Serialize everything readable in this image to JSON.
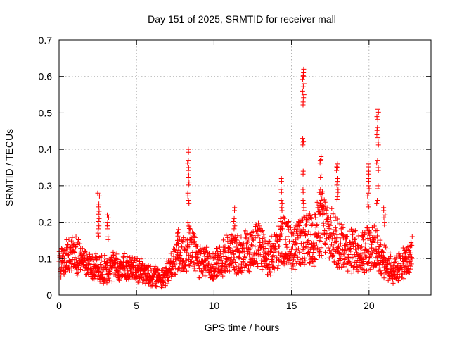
{
  "chart_data": {
    "type": "scatter",
    "title": "Day 151 of 2025, SRMTID for receiver mall",
    "xlabel": "GPS time / hours",
    "ylabel": "SRMTID / TECUs",
    "xlim": [
      0,
      24
    ],
    "ylim": [
      0,
      0.7
    ],
    "xticks": [
      0,
      5,
      10,
      15,
      20
    ],
    "xtick_labels": [
      "0",
      "5",
      "10",
      "15",
      "20"
    ],
    "yticks": [
      0,
      0.1,
      0.2,
      0.3,
      0.4,
      0.5,
      0.6,
      0.7
    ],
    "ytick_labels": [
      "0",
      "0.1",
      "0.2",
      "0.3",
      "0.4",
      "0.5",
      "0.6",
      "0.7"
    ],
    "grid": true,
    "marker": "+",
    "color": "#ff0000",
    "data_extent_hours": [
      0,
      22.8
    ],
    "baseline": [
      [
        0.0,
        0.09
      ],
      [
        0.5,
        0.1
      ],
      [
        1.0,
        0.12
      ],
      [
        1.5,
        0.09
      ],
      [
        2.0,
        0.08
      ],
      [
        2.5,
        0.07
      ],
      [
        3.0,
        0.07
      ],
      [
        3.5,
        0.08
      ],
      [
        4.0,
        0.08
      ],
      [
        4.5,
        0.07
      ],
      [
        5.0,
        0.07
      ],
      [
        5.5,
        0.06
      ],
      [
        6.0,
        0.05
      ],
      [
        6.5,
        0.05
      ],
      [
        7.0,
        0.06
      ],
      [
        7.5,
        0.1
      ],
      [
        8.0,
        0.11
      ],
      [
        8.5,
        0.13
      ],
      [
        9.0,
        0.1
      ],
      [
        9.5,
        0.09
      ],
      [
        10.0,
        0.08
      ],
      [
        10.5,
        0.1
      ],
      [
        11.0,
        0.12
      ],
      [
        11.5,
        0.11
      ],
      [
        12.0,
        0.12
      ],
      [
        12.5,
        0.13
      ],
      [
        13.0,
        0.14
      ],
      [
        13.5,
        0.1
      ],
      [
        14.0,
        0.12
      ],
      [
        14.5,
        0.15
      ],
      [
        15.0,
        0.13
      ],
      [
        15.5,
        0.14
      ],
      [
        16.0,
        0.15
      ],
      [
        16.5,
        0.16
      ],
      [
        17.0,
        0.2
      ],
      [
        17.5,
        0.16
      ],
      [
        18.0,
        0.15
      ],
      [
        18.5,
        0.13
      ],
      [
        19.0,
        0.12
      ],
      [
        19.5,
        0.12
      ],
      [
        20.0,
        0.14
      ],
      [
        20.5,
        0.12
      ],
      [
        21.0,
        0.09
      ],
      [
        21.5,
        0.07
      ],
      [
        22.0,
        0.08
      ],
      [
        22.5,
        0.09
      ],
      [
        22.8,
        0.12
      ]
    ],
    "spikes": [
      {
        "x": 2.55,
        "values": [
          0.28,
          0.25,
          0.23,
          0.21,
          0.19,
          0.17
        ]
      },
      {
        "x": 3.15,
        "values": [
          0.22,
          0.2,
          0.19,
          0.16
        ]
      },
      {
        "x": 7.65,
        "values": [
          0.18,
          0.17,
          0.15
        ]
      },
      {
        "x": 8.35,
        "values": [
          0.4,
          0.37,
          0.35,
          0.33,
          0.31,
          0.28,
          0.26,
          0.2
        ]
      },
      {
        "x": 11.3,
        "values": [
          0.24,
          0.21,
          0.19
        ]
      },
      {
        "x": 14.35,
        "values": [
          0.32,
          0.29,
          0.26,
          0.24,
          0.21
        ]
      },
      {
        "x": 15.75,
        "values": [
          0.62,
          0.61,
          0.6,
          0.58,
          0.56,
          0.55,
          0.53,
          0.43,
          0.42,
          0.34,
          0.29,
          0.26,
          0.24
        ]
      },
      {
        "x": 16.85,
        "values": [
          0.38,
          0.37,
          0.33,
          0.29,
          0.26,
          0.23
        ]
      },
      {
        "x": 17.95,
        "values": [
          0.36,
          0.35,
          0.32,
          0.31,
          0.29,
          0.27
        ]
      },
      {
        "x": 19.95,
        "values": [
          0.36,
          0.34,
          0.32,
          0.3,
          0.28,
          0.25
        ]
      },
      {
        "x": 20.55,
        "values": [
          0.51,
          0.49,
          0.46,
          0.44,
          0.42,
          0.37,
          0.35,
          0.3,
          0.26
        ]
      },
      {
        "x": 21.0,
        "values": [
          0.24,
          0.22,
          0.2
        ]
      }
    ]
  }
}
